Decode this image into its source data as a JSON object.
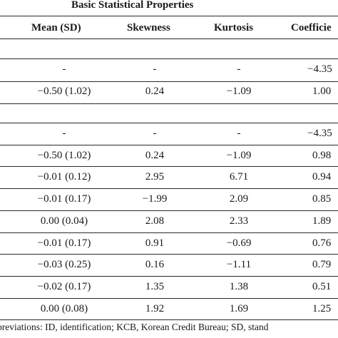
{
  "table": {
    "group_header": "Basic Statistical Properties",
    "columns": [
      "Mean (SD)",
      "Skewness",
      "Kurtosis",
      "Coefficie"
    ],
    "rows": [
      {
        "mean": "-",
        "skew": "-",
        "kurt": "-",
        "coef": "−4.35"
      },
      {
        "mean": "−0.50 (1.02)",
        "skew": "0.24",
        "kurt": "−1.09",
        "coef": "1.00"
      },
      {
        "mean": "-",
        "skew": "-",
        "kurt": "-",
        "coef": "−4.35"
      },
      {
        "mean": "−0.50 (1.02)",
        "skew": "0.24",
        "kurt": "−1.09",
        "coef": "0.98"
      },
      {
        "mean": "−0.01 (0.12)",
        "skew": "2.95",
        "kurt": "6.71",
        "coef": "0.94"
      },
      {
        "mean": "−0.01 (0.17)",
        "skew": "−1.99",
        "kurt": "2.09",
        "coef": "0.85"
      },
      {
        "mean": "0.00 (0.04)",
        "skew": "2.08",
        "kurt": "2.33",
        "coef": "1.89"
      },
      {
        "mean": "−0.01 (0.17)",
        "skew": "0.91",
        "kurt": "−0.69",
        "coef": "0.76"
      },
      {
        "mean": "−0.03 (0.25)",
        "skew": "0.16",
        "kurt": "−1.11",
        "coef": "0.79"
      },
      {
        "mean": "−0.02 (0.17)",
        "skew": "1.35",
        "kurt": "1.38",
        "coef": "0.51"
      },
      {
        "mean": "0.00 (0.08)",
        "skew": "1.92",
        "kurt": "1.69",
        "coef": "1.25"
      }
    ],
    "footnote": "breviations: ID, identification; KCB, Korean Credit Bureau; SD, stand"
  }
}
